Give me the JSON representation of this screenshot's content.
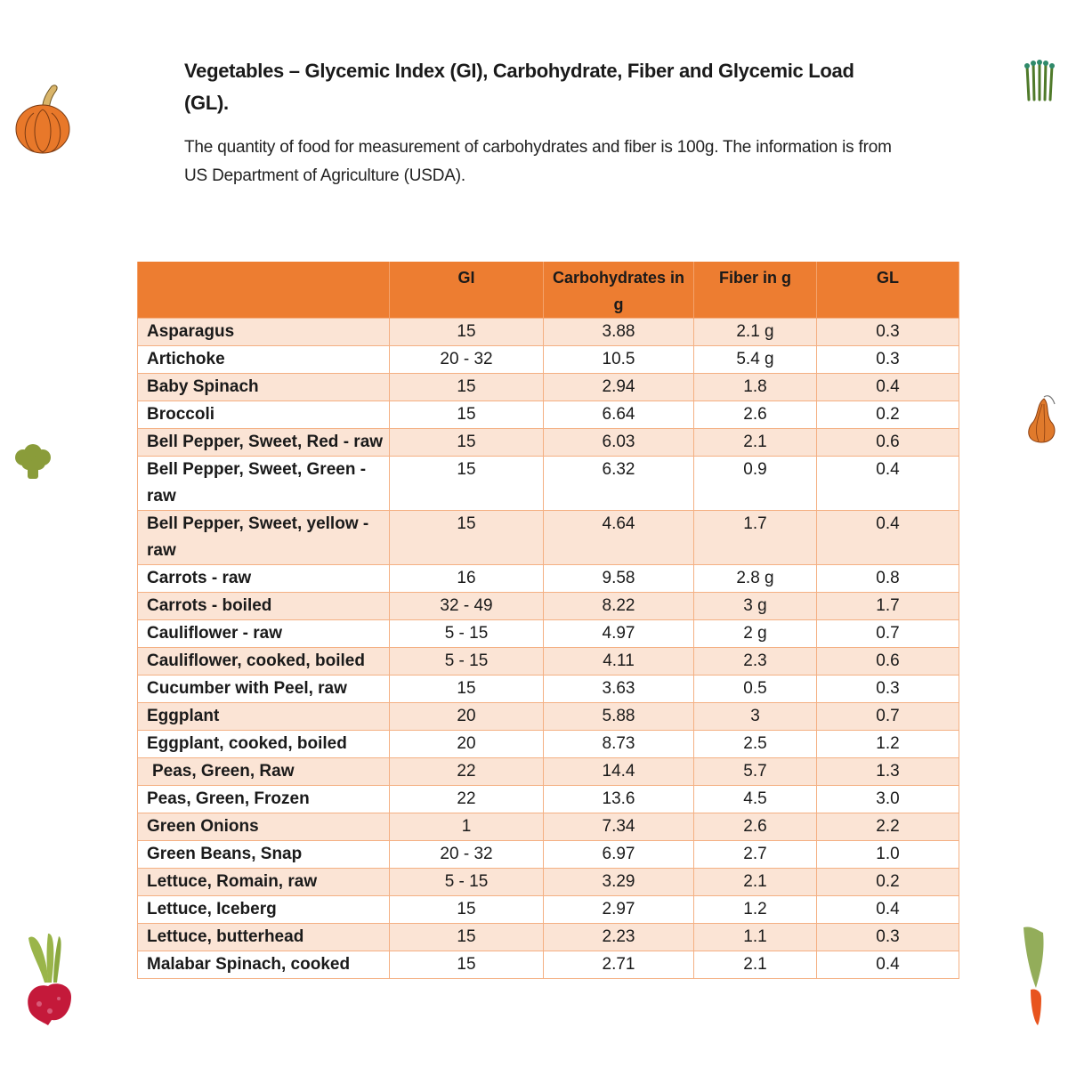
{
  "document": {
    "title": "Vegetables – Glycemic Index (GI), Carbohydrate, Fiber and Glycemic Load (GL).",
    "subtitle": "The quantity of food for measurement of carbohydrates and fiber is 100g. The information is from US Department of Agriculture (USDA)."
  },
  "decorations": [
    {
      "name": "pumpkin-icon",
      "position": "top-left"
    },
    {
      "name": "asparagus-icon",
      "position": "top-right"
    },
    {
      "name": "broccoli-icon",
      "position": "middle-left"
    },
    {
      "name": "gourd-icon",
      "position": "middle-right"
    },
    {
      "name": "beet-icon",
      "position": "bottom-left"
    },
    {
      "name": "carrot-icon",
      "position": "bottom-right"
    }
  ],
  "colors": {
    "header_bg": "#ED7D31",
    "stripe_bg": "#FBE4D5",
    "border": "#F4B083"
  },
  "table": {
    "headers": [
      "",
      "GI",
      "Carbohydrates in g",
      "Fiber in g",
      "GL"
    ],
    "rows": [
      {
        "name": "Asparagus",
        "gi": "15",
        "carbs": "3.88",
        "fiber": "2.1 g",
        "gl": "0.3"
      },
      {
        "name": "Artichoke",
        "gi": "20 - 32",
        "carbs": "10.5",
        "fiber": "5.4 g",
        "gl": "0.3"
      },
      {
        "name": "Baby Spinach",
        "gi": "15",
        "carbs": "2.94",
        "fiber": "1.8",
        "gl": "0.4"
      },
      {
        "name": "Broccoli",
        "gi": "15",
        "carbs": "6.64",
        "fiber": "2.6",
        "gl": "0.2"
      },
      {
        "name": "Bell Pepper, Sweet, Red - raw",
        "gi": "15",
        "carbs": "6.03",
        "fiber": "2.1",
        "gl": "0.6"
      },
      {
        "name": "Bell Pepper, Sweet, Green - raw",
        "gi": "15",
        "carbs": "6.32",
        "fiber": "0.9",
        "gl": "0.4"
      },
      {
        "name": "Bell Pepper, Sweet, yellow - raw",
        "gi": "15",
        "carbs": "4.64",
        "fiber": "1.7",
        "gl": "0.4"
      },
      {
        "name": "Carrots - raw",
        "gi": "16",
        "carbs": "9.58",
        "fiber": "2.8 g",
        "gl": "0.8"
      },
      {
        "name": "Carrots - boiled",
        "gi": "32 - 49",
        "carbs": "8.22",
        "fiber": "3 g",
        "gl": "1.7"
      },
      {
        "name": "Cauliflower - raw",
        "gi": "5 - 15",
        "carbs": "4.97",
        "fiber": "2 g",
        "gl": "0.7"
      },
      {
        "name": "Cauliflower, cooked, boiled",
        "gi": "5 - 15",
        "carbs": "4.11",
        "fiber": "2.3",
        "gl": "0.6"
      },
      {
        "name": "Cucumber with Peel, raw",
        "gi": "15",
        "carbs": "3.63",
        "fiber": "0.5",
        "gl": "0.3"
      },
      {
        "name": "Eggplant",
        "gi": "20",
        "carbs": "5.88",
        "fiber": "3",
        "gl": "0.7"
      },
      {
        "name": "Eggplant, cooked, boiled",
        "gi": "20",
        "carbs": "8.73",
        "fiber": "2.5",
        "gl": "1.2"
      },
      {
        "name": " Peas, Green, Raw",
        "gi": "22",
        "carbs": "14.4",
        "fiber": "5.7",
        "gl": "1.3"
      },
      {
        "name": "Peas, Green, Frozen",
        "gi": "22",
        "carbs": "13.6",
        "fiber": "4.5",
        "gl": "3.0"
      },
      {
        "name": "Green Onions",
        "gi": "1",
        "carbs": "7.34",
        "fiber": "2.6",
        "gl": "2.2"
      },
      {
        "name": "Green Beans, Snap",
        "gi": "20 - 32",
        "carbs": "6.97",
        "fiber": "2.7",
        "gl": "1.0"
      },
      {
        "name": "Lettuce, Romain, raw",
        "gi": "5 - 15",
        "carbs": "3.29",
        "fiber": "2.1",
        "gl": "0.2"
      },
      {
        "name": "Lettuce, Iceberg",
        "gi": "15",
        "carbs": "2.97",
        "fiber": "1.2",
        "gl": "0.4"
      },
      {
        "name": "Lettuce, butterhead",
        "gi": "15",
        "carbs": "2.23",
        "fiber": "1.1",
        "gl": "0.3"
      },
      {
        "name": "Malabar Spinach, cooked",
        "gi": "15",
        "carbs": "2.71",
        "fiber": "2.1",
        "gl": "0.4"
      }
    ]
  }
}
